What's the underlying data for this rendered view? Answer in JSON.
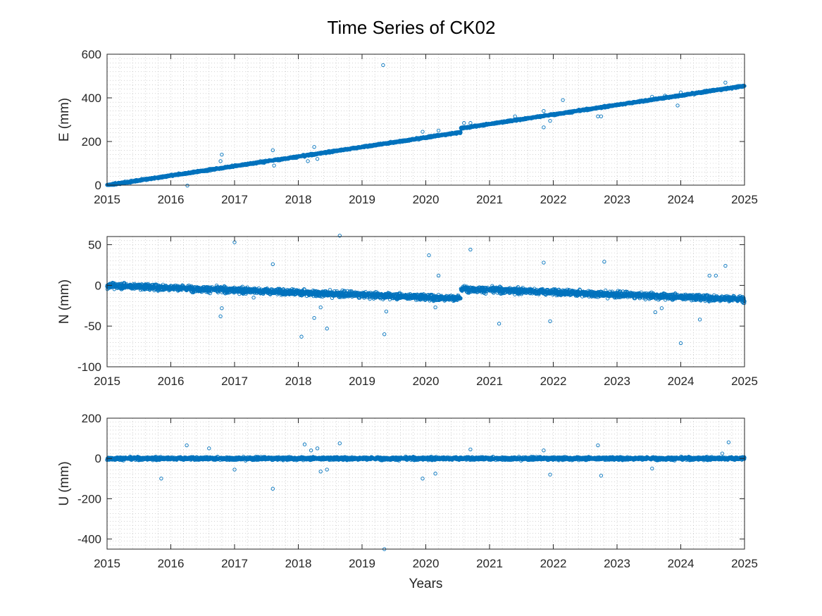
{
  "figure_title": "Time Series of CK02",
  "colors": {
    "marker": "#0072BD",
    "axis": "#262626",
    "grid": "#b8b8b8"
  },
  "chart_data": [
    {
      "type": "scatter",
      "title": "Time Series of CK02",
      "xlabel": "",
      "ylabel": "E (mm)",
      "xlim": [
        2015,
        2025
      ],
      "ylim": [
        0,
        600
      ],
      "xticks": [
        "2015",
        "2016",
        "2017",
        "2018",
        "2019",
        "2020",
        "2021",
        "2022",
        "2023",
        "2024",
        "2025"
      ],
      "yticks": [
        "600",
        "400",
        "200",
        "0"
      ],
      "ytick_values": [
        600,
        400,
        200,
        0
      ],
      "grid": "minor dotted on",
      "marker": "open circle",
      "trend": {
        "start": [
          2015.0,
          0
        ],
        "end": [
          2025.0,
          455
        ],
        "step": {
          "at": 2020.55,
          "size": 18
        },
        "scatter_sd": 3
      },
      "outliers": [
        [
          2019.33,
          550
        ],
        [
          2016.26,
          -2
        ],
        [
          2016.8,
          140
        ],
        [
          2016.78,
          110
        ],
        [
          2017.6,
          160
        ],
        [
          2017.62,
          90
        ],
        [
          2018.15,
          110
        ],
        [
          2018.3,
          120
        ],
        [
          2018.1,
          130
        ],
        [
          2018.25,
          175
        ],
        [
          2019.95,
          245
        ],
        [
          2020.2,
          250
        ],
        [
          2020.6,
          285
        ],
        [
          2020.7,
          285
        ],
        [
          2021.15,
          285
        ],
        [
          2021.4,
          315
        ],
        [
          2021.85,
          340
        ],
        [
          2021.85,
          265
        ],
        [
          2021.95,
          295
        ],
        [
          2022.15,
          390
        ],
        [
          2022.7,
          315
        ],
        [
          2022.75,
          315
        ],
        [
          2023.55,
          405
        ],
        [
          2023.75,
          410
        ],
        [
          2023.95,
          365
        ],
        [
          2024.0,
          425
        ],
        [
          2024.7,
          470
        ]
      ]
    },
    {
      "type": "scatter",
      "xlabel": "",
      "ylabel": "N (mm)",
      "xlim": [
        2015,
        2025
      ],
      "ylim": [
        -100,
        60
      ],
      "xticks": [
        "2015",
        "2016",
        "2017",
        "2018",
        "2019",
        "2020",
        "2021",
        "2022",
        "2023",
        "2024",
        "2025"
      ],
      "yticks": [
        "50",
        "0",
        "-50",
        "-100"
      ],
      "ytick_values": [
        50,
        0,
        -50,
        -100
      ],
      "grid": "minor dotted on",
      "marker": "open circle",
      "trend": {
        "start": [
          2015.0,
          0
        ],
        "end": [
          2025.0,
          -17
        ],
        "step": {
          "at": 2020.55,
          "size": 12
        },
        "scatter_sd": 3
      },
      "outliers": [
        [
          2016.78,
          -38
        ],
        [
          2016.8,
          -28
        ],
        [
          2017.0,
          53
        ],
        [
          2017.3,
          -15
        ],
        [
          2017.6,
          26
        ],
        [
          2018.05,
          -63
        ],
        [
          2018.25,
          -40
        ],
        [
          2018.35,
          -27
        ],
        [
          2018.45,
          -53
        ],
        [
          2018.65,
          61
        ],
        [
          2019.35,
          -60
        ],
        [
          2019.38,
          -32
        ],
        [
          2020.05,
          37
        ],
        [
          2020.2,
          12
        ],
        [
          2020.15,
          -27
        ],
        [
          2020.7,
          44
        ],
        [
          2021.15,
          -47
        ],
        [
          2021.85,
          28
        ],
        [
          2021.95,
          -44
        ],
        [
          2022.8,
          29
        ],
        [
          2023.6,
          -33
        ],
        [
          2023.7,
          -28
        ],
        [
          2024.0,
          -71
        ],
        [
          2024.3,
          -42
        ],
        [
          2024.45,
          12
        ],
        [
          2024.55,
          12
        ],
        [
          2024.7,
          24
        ]
      ]
    },
    {
      "type": "scatter",
      "xlabel": "Years",
      "ylabel": "U (mm)",
      "xlim": [
        2015,
        2025
      ],
      "ylim": [
        -450,
        200
      ],
      "xticks": [
        "2015",
        "2016",
        "2017",
        "2018",
        "2019",
        "2020",
        "2021",
        "2022",
        "2023",
        "2024",
        "2025"
      ],
      "yticks": [
        "200",
        "0",
        "-200",
        "-400"
      ],
      "ytick_values": [
        200,
        0,
        -200,
        -400
      ],
      "grid": "minor dotted on",
      "marker": "open circle",
      "trend": {
        "start": [
          2015.0,
          0
        ],
        "end": [
          2025.0,
          0
        ],
        "step": {
          "at": 2020.55,
          "size": 0
        },
        "scatter_sd": 6
      },
      "outliers": [
        [
          2015.85,
          -100
        ],
        [
          2016.25,
          65
        ],
        [
          2016.6,
          50
        ],
        [
          2017.0,
          -55
        ],
        [
          2017.6,
          -150
        ],
        [
          2018.1,
          70
        ],
        [
          2018.2,
          40
        ],
        [
          2018.3,
          50
        ],
        [
          2018.35,
          -65
        ],
        [
          2018.45,
          -55
        ],
        [
          2018.65,
          75
        ],
        [
          2019.35,
          -450
        ],
        [
          2019.95,
          -100
        ],
        [
          2020.15,
          -75
        ],
        [
          2020.7,
          45
        ],
        [
          2021.85,
          40
        ],
        [
          2021.95,
          -80
        ],
        [
          2022.7,
          65
        ],
        [
          2022.75,
          -85
        ],
        [
          2023.55,
          -50
        ],
        [
          2024.65,
          25
        ],
        [
          2024.75,
          80
        ]
      ]
    }
  ]
}
